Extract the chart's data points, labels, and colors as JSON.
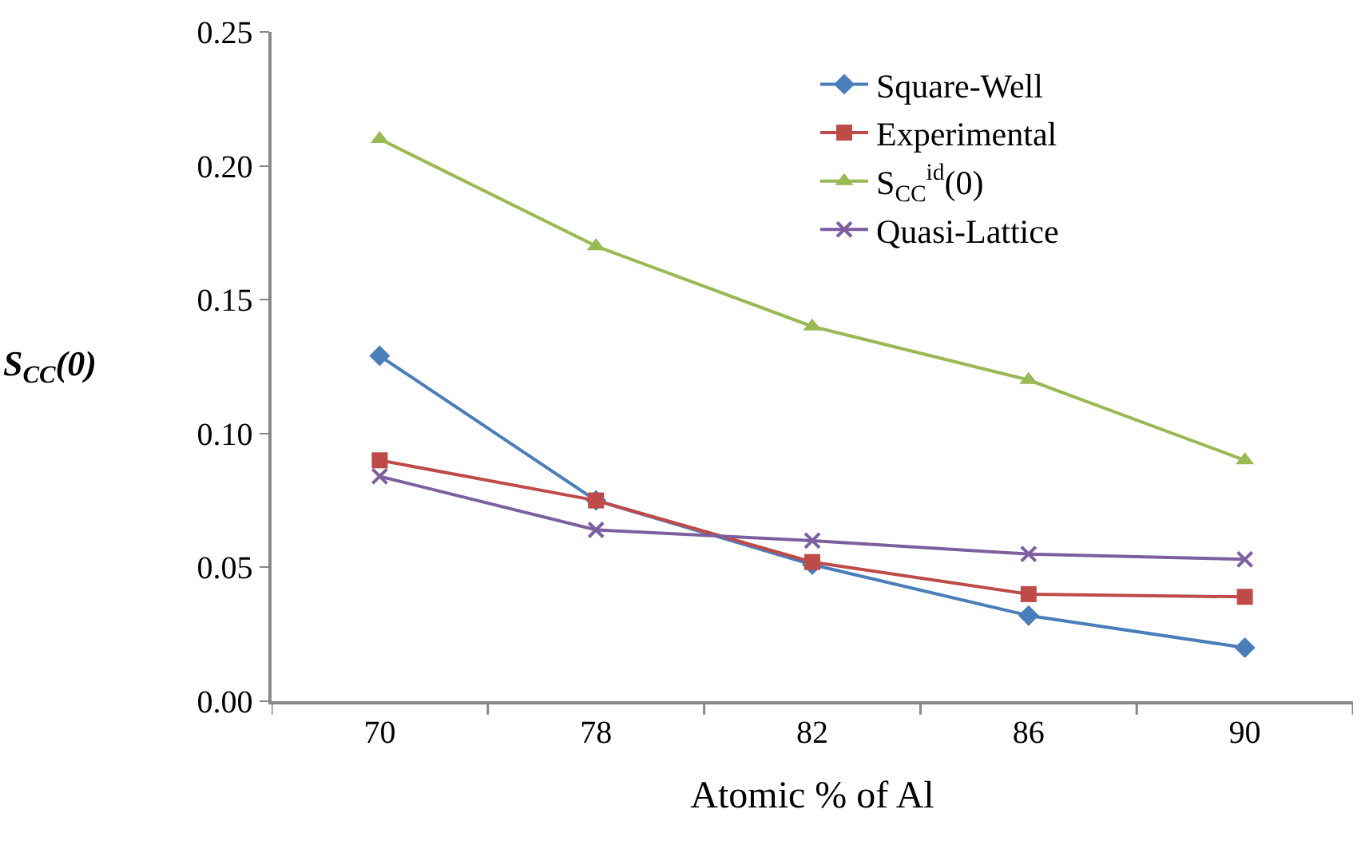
{
  "chart_data": {
    "type": "line",
    "xlabel": "Atomic % of Al",
    "ylabel": "S$_{CC}$(0)",
    "categories": [
      "70",
      "78",
      "82",
      "86",
      "90"
    ],
    "series": [
      {
        "name": "Square-Well",
        "color": "#4a7ebb",
        "marker": "diamond",
        "values": [
          0.129,
          0.075,
          0.051,
          0.032,
          0.02
        ]
      },
      {
        "name": "Experimental",
        "color": "#be4b48",
        "marker": "square",
        "values": [
          0.09,
          0.075,
          0.052,
          0.04,
          0.039
        ]
      },
      {
        "name": "S$_{CC}$$^{id}$(0)",
        "color": "#98b954",
        "marker": "triangle",
        "values": [
          0.21,
          0.17,
          0.14,
          0.12,
          0.09
        ]
      },
      {
        "name": "Quasi-Lattice",
        "color": "#7d5fa0",
        "marker": "cross",
        "values": [
          0.084,
          0.064,
          0.06,
          0.055,
          0.053
        ]
      }
    ],
    "ylim": [
      0,
      0.25
    ],
    "yticks": [
      {
        "value": 0,
        "label": "0.00"
      },
      0.05,
      {
        "value": 0.1,
        "label": "0.10"
      },
      0.15,
      {
        "value": 0.2,
        "label": "0.20"
      },
      0.25
    ],
    "legend": "top right",
    "line_style": "solid"
  }
}
